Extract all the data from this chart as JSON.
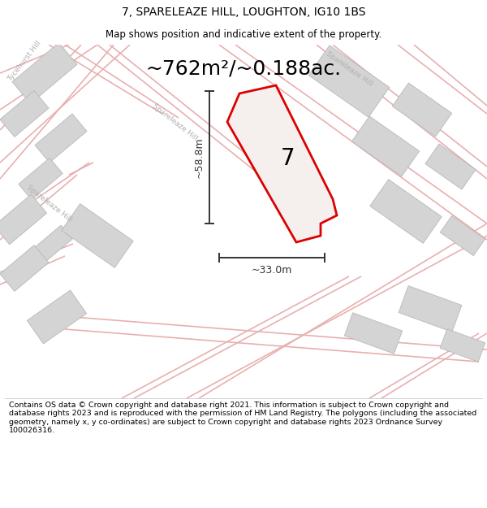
{
  "title_line1": "7, SPARELEAZE HILL, LOUGHTON, IG10 1BS",
  "title_line2": "Map shows position and indicative extent of the property.",
  "area_text": "~762m²/~0.188ac.",
  "dim_vertical": "~58.8m",
  "dim_horizontal": "~33.0m",
  "property_number": "7",
  "copyright_text": "Contains OS data © Crown copyright and database right 2021. This information is subject to Crown copyright and database rights 2023 and is reproduced with the permission of HM Land Registry. The polygons (including the associated geometry, namely x, y co-ordinates) are subject to Crown copyright and database rights 2023 Ordnance Survey 100026316.",
  "map_bg": "#eeece8",
  "road_color": "#e8b0b0",
  "building_fill": "#d4d4d4",
  "building_edge": "#b8b8b8",
  "plot_edge": "#dd0000",
  "plot_fill": "#f5f0ee",
  "dim_color": "#333333",
  "road_label_color": "#b0b0b0",
  "title_color": "#000000"
}
